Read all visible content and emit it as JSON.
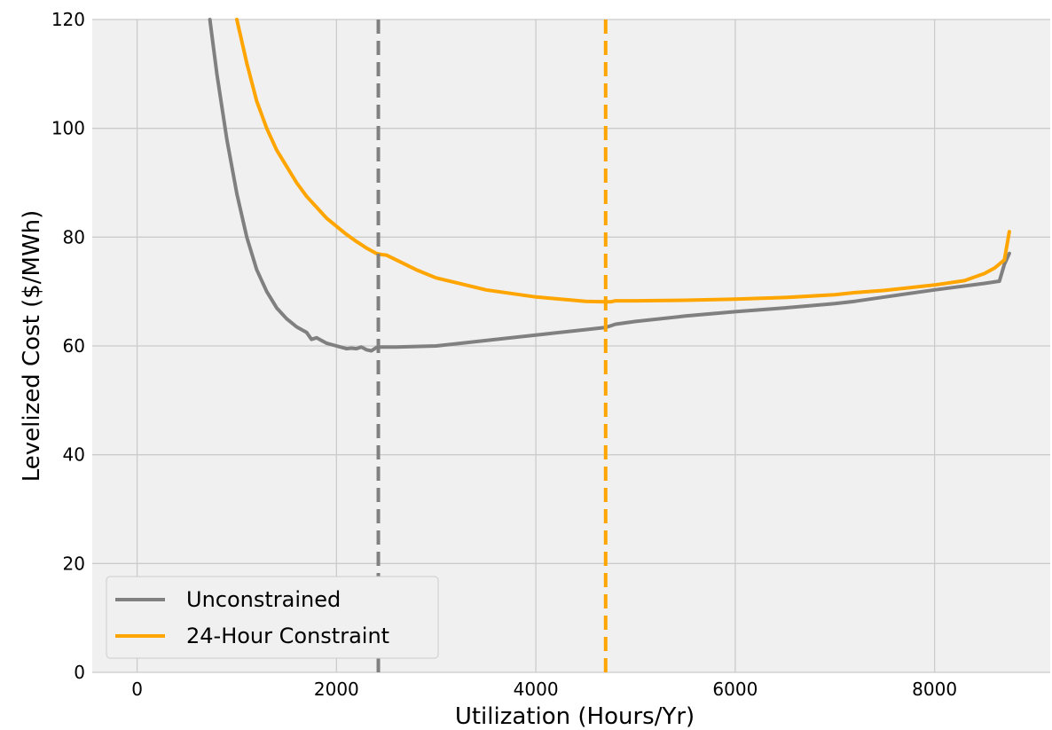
{
  "chart_data": {
    "type": "line",
    "xlabel": "Utilization (Hours/Yr)",
    "ylabel": "Levelized Cost ($/MWh)",
    "xlim": [
      -450,
      9160
    ],
    "ylim": [
      0,
      120
    ],
    "xticks": [
      0,
      2000,
      4000,
      6000,
      8000
    ],
    "yticks": [
      0,
      20,
      40,
      60,
      80,
      100,
      120
    ],
    "xtick_labels": [
      "0",
      "2000",
      "4000",
      "6000",
      "8000"
    ],
    "ytick_labels": [
      "0",
      "20",
      "40",
      "60",
      "80",
      "100",
      "120"
    ],
    "grid": true,
    "background": "#f0f0f0",
    "legend_position": "lower-left",
    "series": [
      {
        "name": "Unconstrained",
        "color": "#808080",
        "x": [
          730,
          800,
          900,
          1000,
          1100,
          1200,
          1300,
          1400,
          1500,
          1600,
          1700,
          1750,
          1800,
          1850,
          1900,
          2000,
          2100,
          2150,
          2200,
          2250,
          2300,
          2350,
          2400,
          2450,
          2600,
          2800,
          3000,
          3500,
          4000,
          4500,
          4700,
          4800,
          5000,
          5500,
          6000,
          6500,
          7000,
          7200,
          7500,
          8000,
          8500,
          8650,
          8700,
          8750
        ],
        "y": [
          120,
          110,
          98,
          88,
          80,
          74,
          70,
          67,
          65,
          63.5,
          62.5,
          61.2,
          61.5,
          61,
          60.5,
          60,
          59.5,
          59.6,
          59.5,
          59.8,
          59.3,
          59.1,
          59.7,
          59.8,
          59.8,
          59.9,
          60,
          61,
          62,
          63,
          63.4,
          64,
          64.5,
          65.5,
          66.3,
          67,
          67.8,
          68.2,
          69,
          70.3,
          71.5,
          71.9,
          75,
          77
        ]
      },
      {
        "name": "24-Hour Constraint",
        "color": "#ffa500",
        "x": [
          1000,
          1100,
          1200,
          1300,
          1400,
          1500,
          1600,
          1700,
          1800,
          1900,
          2000,
          2100,
          2200,
          2300,
          2400,
          2450,
          2500,
          2600,
          2800,
          3000,
          3500,
          4000,
          4500,
          4700,
          4750,
          4800,
          5000,
          5500,
          6000,
          6500,
          7000,
          7200,
          7500,
          8000,
          8300,
          8500,
          8600,
          8700,
          8750
        ],
        "y": [
          120,
          112,
          105,
          100,
          96,
          93,
          90,
          87.5,
          85.5,
          83.5,
          82,
          80.5,
          79.2,
          78,
          77,
          76.8,
          76.7,
          75.8,
          74,
          72.5,
          70.3,
          69,
          68.2,
          68.1,
          68.1,
          68.3,
          68.3,
          68.4,
          68.6,
          68.9,
          69.4,
          69.8,
          70.2,
          71.2,
          72,
          73.3,
          74.3,
          75.8,
          81
        ]
      }
    ],
    "vlines": [
      {
        "x": 2420,
        "color": "#808080",
        "style": "dashed"
      },
      {
        "x": 4700,
        "color": "#ffa500",
        "style": "dashed"
      }
    ]
  }
}
